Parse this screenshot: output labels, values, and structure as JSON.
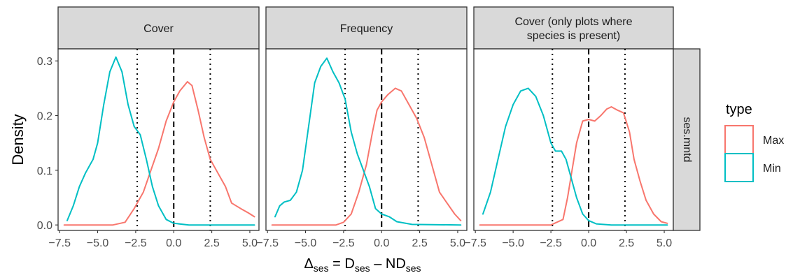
{
  "chart_data": {
    "type": "line",
    "facet_col_labels": [
      [
        "Cover"
      ],
      [
        "Frequency"
      ],
      [
        "Cover (only plots where",
        "species is present)"
      ]
    ],
    "facet_row_label": "ses.mntd",
    "xlabel": {
      "main": "Δ",
      "sub": "ses",
      "eq": " = D",
      "sub2": "ses",
      "minus": " – ND",
      "sub3": "ses"
    },
    "ylabel": "Density",
    "xlim": [
      -7.6,
      5.6
    ],
    "ylim": [
      -0.01,
      0.322
    ],
    "x_ticks": [
      -7.5,
      -5,
      -2.5,
      0,
      2.5,
      5
    ],
    "x_tick_labels": [
      "−7.5",
      "−5.0",
      "−2.5",
      "0.0",
      "2.5",
      "5.0"
    ],
    "y_ticks": [
      0,
      0.1,
      0.2,
      0.3
    ],
    "y_tick_labels": [
      "0.0",
      "0.1",
      "0.2",
      "0.3"
    ],
    "reference_lines": {
      "dashed": [
        0
      ],
      "dotted": [
        -2.4,
        2.4
      ]
    },
    "legend": {
      "title": "type",
      "position": "right",
      "entries": [
        {
          "name": "Max",
          "color": "#F8766D"
        },
        {
          "name": "Min",
          "color": "#00BFC4"
        }
      ]
    },
    "panels": [
      {
        "series": [
          {
            "name": "Max",
            "color": "#F8766D",
            "points": [
              [
                -7.2,
                0.0
              ],
              [
                -5.0,
                0.0
              ],
              [
                -4.0,
                0.0
              ],
              [
                -3.2,
                0.005
              ],
              [
                -2.6,
                0.03
              ],
              [
                -2.0,
                0.06
              ],
              [
                -1.5,
                0.1
              ],
              [
                -1.0,
                0.14
              ],
              [
                -0.5,
                0.19
              ],
              [
                0.0,
                0.225
              ],
              [
                0.4,
                0.245
              ],
              [
                0.9,
                0.262
              ],
              [
                1.2,
                0.255
              ],
              [
                1.6,
                0.21
              ],
              [
                2.0,
                0.16
              ],
              [
                2.4,
                0.12
              ],
              [
                2.9,
                0.095
              ],
              [
                3.4,
                0.07
              ],
              [
                3.8,
                0.04
              ],
              [
                4.4,
                0.03
              ],
              [
                4.9,
                0.022
              ],
              [
                5.3,
                0.015
              ]
            ]
          },
          {
            "name": "Min",
            "color": "#00BFC4",
            "points": [
              [
                -7.0,
                0.008
              ],
              [
                -6.6,
                0.035
              ],
              [
                -6.2,
                0.07
              ],
              [
                -5.8,
                0.095
              ],
              [
                -5.3,
                0.12
              ],
              [
                -5.0,
                0.15
              ],
              [
                -4.6,
                0.22
              ],
              [
                -4.2,
                0.28
              ],
              [
                -3.8,
                0.307
              ],
              [
                -3.4,
                0.28
              ],
              [
                -3.0,
                0.22
              ],
              [
                -2.6,
                0.18
              ],
              [
                -2.2,
                0.165
              ],
              [
                -1.8,
                0.12
              ],
              [
                -1.4,
                0.07
              ],
              [
                -1.0,
                0.035
              ],
              [
                -0.5,
                0.01
              ],
              [
                0.0,
                0.003
              ],
              [
                1.0,
                0.0
              ],
              [
                3.0,
                0.0
              ],
              [
                5.3,
                0.0
              ]
            ]
          }
        ]
      },
      {
        "series": [
          {
            "name": "Max",
            "color": "#F8766D",
            "points": [
              [
                -7.2,
                0.0
              ],
              [
                -4.0,
                0.0
              ],
              [
                -3.0,
                0.0
              ],
              [
                -2.5,
                0.005
              ],
              [
                -2.0,
                0.02
              ],
              [
                -1.5,
                0.06
              ],
              [
                -1.0,
                0.11
              ],
              [
                -0.6,
                0.17
              ],
              [
                -0.3,
                0.21
              ],
              [
                0.0,
                0.225
              ],
              [
                0.4,
                0.238
              ],
              [
                0.9,
                0.25
              ],
              [
                1.3,
                0.245
              ],
              [
                1.8,
                0.22
              ],
              [
                2.3,
                0.195
              ],
              [
                2.8,
                0.16
              ],
              [
                3.3,
                0.11
              ],
              [
                3.8,
                0.06
              ],
              [
                4.3,
                0.04
              ],
              [
                4.8,
                0.02
              ],
              [
                5.2,
                0.008
              ]
            ]
          },
          {
            "name": "Min",
            "color": "#00BFC4",
            "points": [
              [
                -7.0,
                0.015
              ],
              [
                -6.7,
                0.035
              ],
              [
                -6.4,
                0.042
              ],
              [
                -6.0,
                0.045
              ],
              [
                -5.6,
                0.06
              ],
              [
                -5.2,
                0.1
              ],
              [
                -4.8,
                0.18
              ],
              [
                -4.4,
                0.26
              ],
              [
                -4.0,
                0.29
              ],
              [
                -3.6,
                0.305
              ],
              [
                -3.2,
                0.28
              ],
              [
                -2.8,
                0.26
              ],
              [
                -2.4,
                0.23
              ],
              [
                -2.0,
                0.17
              ],
              [
                -1.6,
                0.13
              ],
              [
                -1.2,
                0.1
              ],
              [
                -0.8,
                0.07
              ],
              [
                -0.4,
                0.03
              ],
              [
                0.0,
                0.02
              ],
              [
                0.5,
                0.015
              ],
              [
                1.0,
                0.006
              ],
              [
                2.0,
                0.001
              ],
              [
                5.2,
                0.0
              ]
            ]
          }
        ]
      },
      {
        "series": [
          {
            "name": "Max",
            "color": "#F8766D",
            "points": [
              [
                -7.2,
                0.0
              ],
              [
                -3.5,
                0.0
              ],
              [
                -2.5,
                0.0
              ],
              [
                -1.7,
                0.01
              ],
              [
                -1.4,
                0.05
              ],
              [
                -1.1,
                0.1
              ],
              [
                -0.8,
                0.15
              ],
              [
                -0.4,
                0.19
              ],
              [
                0.0,
                0.193
              ],
              [
                0.4,
                0.19
              ],
              [
                0.8,
                0.2
              ],
              [
                1.2,
                0.212
              ],
              [
                1.5,
                0.216
              ],
              [
                1.9,
                0.21
              ],
              [
                2.3,
                0.205
              ],
              [
                2.7,
                0.17
              ],
              [
                3.0,
                0.12
              ],
              [
                3.4,
                0.08
              ],
              [
                3.8,
                0.045
              ],
              [
                4.3,
                0.02
              ],
              [
                4.8,
                0.006
              ],
              [
                5.2,
                0.003
              ]
            ]
          },
          {
            "name": "Min",
            "color": "#00BFC4",
            "points": [
              [
                -7.0,
                0.02
              ],
              [
                -6.5,
                0.06
              ],
              [
                -6.0,
                0.12
              ],
              [
                -5.5,
                0.18
              ],
              [
                -5.0,
                0.22
              ],
              [
                -4.5,
                0.245
              ],
              [
                -4.0,
                0.25
              ],
              [
                -3.5,
                0.235
              ],
              [
                -3.0,
                0.2
              ],
              [
                -2.5,
                0.15
              ],
              [
                -2.2,
                0.135
              ],
              [
                -1.8,
                0.135
              ],
              [
                -1.5,
                0.12
              ],
              [
                -1.2,
                0.09
              ],
              [
                -0.8,
                0.05
              ],
              [
                -0.4,
                0.02
              ],
              [
                0.0,
                0.008
              ],
              [
                0.5,
                0.002
              ],
              [
                1.5,
                0.0
              ],
              [
                5.2,
                0.0
              ]
            ]
          }
        ]
      }
    ]
  }
}
